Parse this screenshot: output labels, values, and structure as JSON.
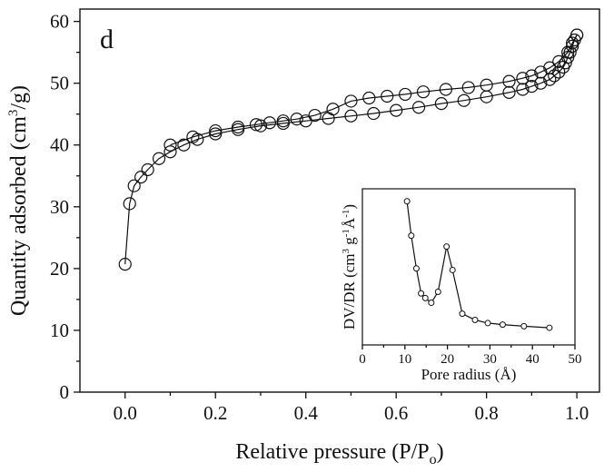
{
  "chart_data": [
    {
      "type": "scatter",
      "panel_label": "d",
      "xlabel": "Relative pressure (P/P",
      "xlabel_sub": "o",
      "xlabel_end": ")",
      "ylabel": "Quantity adsorbed (cm",
      "ylabel_sup": "3",
      "ylabel_end": "/g)",
      "xlim": [
        -0.1,
        1.05
      ],
      "ylim": [
        0,
        62
      ],
      "x_ticks": [
        0.0,
        0.2,
        0.4,
        0.6,
        0.8,
        1.0
      ],
      "x_tick_labels": [
        "0.0",
        "0.2",
        "0.4",
        "0.6",
        "0.8",
        "1.0"
      ],
      "y_ticks": [
        0,
        10,
        20,
        30,
        40,
        50,
        60
      ],
      "y_tick_labels": [
        "0",
        "10",
        "20",
        "30",
        "40",
        "50",
        "60"
      ],
      "grid": false,
      "legend": "none",
      "series": [
        {
          "role": "adsorption",
          "x": [
            0.0,
            0.01,
            0.02,
            0.035,
            0.05,
            0.075,
            0.1,
            0.13,
            0.16,
            0.2,
            0.25,
            0.3,
            0.35,
            0.4,
            0.45,
            0.5,
            0.55,
            0.6,
            0.65,
            0.7,
            0.75,
            0.8,
            0.85,
            0.88,
            0.9,
            0.92,
            0.94,
            0.95,
            0.96,
            0.97,
            0.975,
            0.98,
            0.985,
            0.99,
            0.995,
            1.0
          ],
          "y": [
            20.7,
            30.5,
            33.4,
            34.8,
            36.0,
            37.8,
            38.9,
            40.0,
            40.9,
            41.8,
            42.5,
            43.1,
            43.5,
            43.9,
            44.3,
            44.7,
            45.1,
            45.6,
            46.1,
            46.7,
            47.2,
            47.8,
            48.5,
            49.0,
            49.5,
            50.0,
            50.6,
            51.2,
            51.8,
            52.6,
            53.3,
            54.2,
            55.0,
            56.0,
            57.0,
            57.8
          ]
        },
        {
          "role": "desorption",
          "x": [
            1.0,
            0.99,
            0.98,
            0.96,
            0.94,
            0.92,
            0.9,
            0.88,
            0.85,
            0.8,
            0.76,
            0.71,
            0.66,
            0.62,
            0.58,
            0.54,
            0.5,
            0.46,
            0.42,
            0.38,
            0.35,
            0.32,
            0.29,
            0.25,
            0.2,
            0.15,
            0.1
          ],
          "y": [
            57.8,
            56.5,
            55.0,
            53.5,
            52.5,
            51.8,
            51.2,
            50.8,
            50.3,
            49.7,
            49.3,
            49.0,
            48.6,
            48.2,
            47.9,
            47.6,
            47.1,
            45.8,
            44.8,
            44.2,
            43.9,
            43.6,
            43.3,
            42.9,
            42.3,
            41.3,
            40.0
          ]
        }
      ]
    },
    {
      "type": "line",
      "xlabel": "Pore radius (Å)",
      "ylabel": "DV/DR (cm",
      "ylabel_sup1": "3",
      "ylabel_mid": " g",
      "ylabel_sup2": "-1",
      "ylabel_mid2": "Å",
      "ylabel_sup3": "-1",
      "ylabel_end": ")",
      "xlim": [
        0,
        50
      ],
      "ylim": [
        0,
        1
      ],
      "x_ticks": [
        0,
        10,
        20,
        30,
        40,
        50
      ],
      "x_tick_labels": [
        "0",
        "10",
        "20",
        "30",
        "40",
        "50"
      ],
      "y_tick_labels": [],
      "x": [
        10.5,
        11.5,
        12.7,
        13.8,
        14.8,
        16.2,
        17.8,
        19.8,
        21.2,
        23.5,
        26.5,
        29.5,
        33.0,
        38.0,
        44.0
      ],
      "y": [
        0.92,
        0.7,
        0.49,
        0.33,
        0.3,
        0.27,
        0.34,
        0.63,
        0.48,
        0.2,
        0.16,
        0.14,
        0.13,
        0.12,
        0.11
      ]
    }
  ]
}
